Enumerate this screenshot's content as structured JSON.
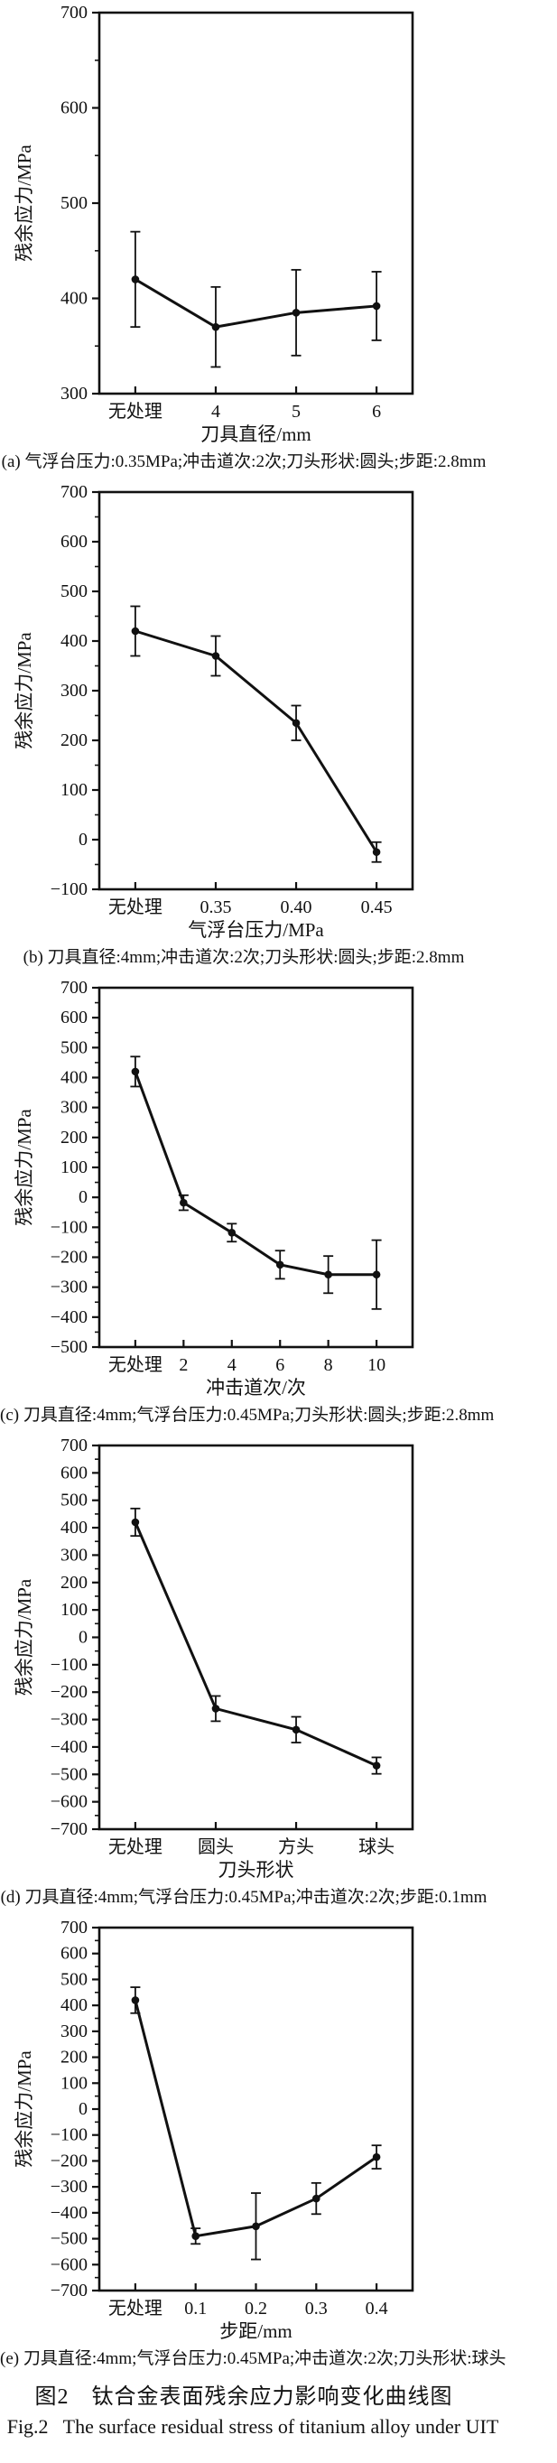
{
  "figure": {
    "caption_cn": "图2　钛合金表面残余应力影响变化曲线图",
    "caption_en": "Fig.2   The surface residual stress of titanium alloy under UIT"
  },
  "chart_data": [
    {
      "id": "a",
      "type": "line",
      "title": "",
      "ylabel": "残余应力/MPa",
      "xlabel": "刀具直径/mm",
      "ylim": [
        300,
        700
      ],
      "ytick_step": 100,
      "yminor_step": 50,
      "grid": false,
      "legend": "none",
      "categories": [
        "无处理",
        "4",
        "5",
        "6"
      ],
      "values": [
        420,
        370,
        385,
        392
      ],
      "errors": [
        50,
        42,
        45,
        36
      ],
      "caption": "(a) 气浮台压力:0.35MPa;冲击道次:2次;刀头形状:圆头;步距:2.8mm"
    },
    {
      "id": "b",
      "type": "line",
      "title": "",
      "ylabel": "残余应力/MPa",
      "xlabel": "气浮台压力/MPa",
      "ylim": [
        -100,
        700
      ],
      "ytick_step": 100,
      "yminor_step": 50,
      "grid": false,
      "legend": "none",
      "categories": [
        "无处理",
        "0.35",
        "0.40",
        "0.45"
      ],
      "values": [
        420,
        370,
        235,
        -25
      ],
      "errors": [
        50,
        40,
        35,
        20
      ],
      "caption": "(b) 刀具直径:4mm;冲击道次:2次;刀头形状:圆头;步距:2.8mm"
    },
    {
      "id": "c",
      "type": "line",
      "title": "",
      "ylabel": "残余应力/MPa",
      "xlabel": "冲击道次/次",
      "ylim": [
        -500,
        700
      ],
      "ytick_step": 100,
      "yminor_step": 50,
      "grid": false,
      "legend": "none",
      "categories": [
        "无处理",
        "2",
        "4",
        "6",
        "8",
        "10"
      ],
      "values": [
        420,
        -18,
        -118,
        -225,
        -258,
        -258
      ],
      "errors": [
        50,
        25,
        30,
        47,
        62,
        115
      ],
      "caption": "(c) 刀具直径:4mm;气浮台压力:0.45MPa;刀头形状:圆头;步距:2.8mm"
    },
    {
      "id": "d",
      "type": "line",
      "title": "",
      "ylabel": "残余应力/MPa",
      "xlabel": "刀头形状",
      "ylim": [
        -700,
        700
      ],
      "ytick_step": 100,
      "yminor_step": 50,
      "grid": false,
      "legend": "none",
      "categories": [
        "无处理",
        "圆头",
        "方头",
        "球头"
      ],
      "values": [
        420,
        -260,
        -337,
        -468
      ],
      "errors": [
        50,
        46,
        47,
        30
      ],
      "caption": "(d) 刀具直径:4mm;气浮台压力:0.45MPa;冲击道次:2次;步距:0.1mm"
    },
    {
      "id": "e",
      "type": "line",
      "title": "",
      "ylabel": "残余应力/MPa",
      "xlabel": "步距/mm",
      "ylim": [
        -700,
        700
      ],
      "ytick_step": 100,
      "yminor_step": 50,
      "grid": false,
      "legend": "none",
      "categories": [
        "无处理",
        "0.1",
        "0.2",
        "0.3",
        "0.4"
      ],
      "values": [
        420,
        -490,
        -452,
        -345,
        -185
      ],
      "errors": [
        50,
        30,
        128,
        60,
        45
      ],
      "caption": "(e) 刀具直径:4mm;气浮台压力:0.45MPa;冲击道次:2次;刀头形状:球头"
    }
  ]
}
